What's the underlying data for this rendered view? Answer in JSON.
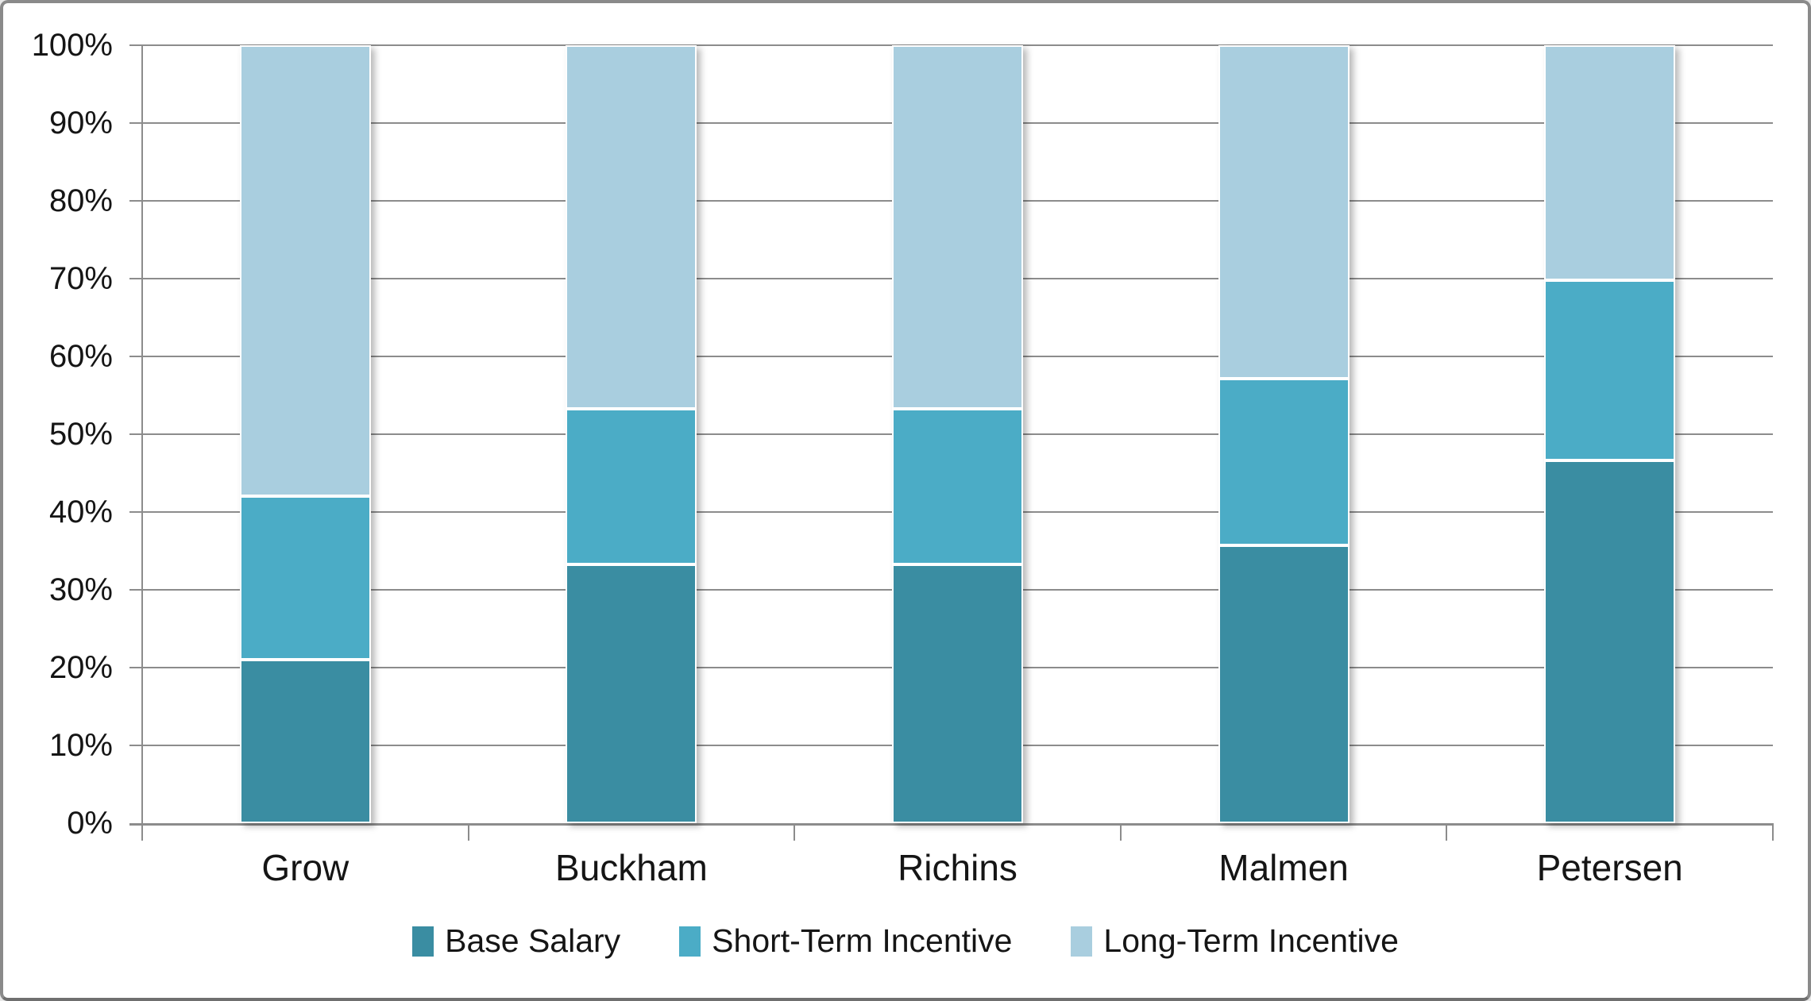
{
  "chart_data": {
    "type": "bar",
    "stacking": "percent_stacked",
    "orientation": "vertical",
    "title": "",
    "xlabel": "",
    "ylabel": "",
    "categories": [
      "Grow",
      "Buckham",
      "Richins",
      "Malmen",
      "Petersen"
    ],
    "series": [
      {
        "name": "Base Salary",
        "color": "#3A8DA2",
        "values": [
          21.0,
          33.3,
          33.3,
          35.7,
          46.6
        ]
      },
      {
        "name": "Short-Term Incentive",
        "color": "#4BACC6",
        "values": [
          21.0,
          20.0,
          20.0,
          21.4,
          23.2
        ]
      },
      {
        "name": "Long-Term Incentive",
        "color": "#A9CEDF",
        "values": [
          58.0,
          46.7,
          46.7,
          42.9,
          30.2
        ]
      }
    ],
    "y_axis": {
      "min": 0,
      "max": 100,
      "tick_step": 10,
      "tick_labels": [
        "0%",
        "10%",
        "20%",
        "30%",
        "40%",
        "50%",
        "60%",
        "70%",
        "80%",
        "90%",
        "100%"
      ]
    },
    "x_axis": {
      "tick_labels": [
        "Grow",
        "Buckham",
        "Richins",
        "Malmen",
        "Petersen"
      ]
    },
    "legend": {
      "position": "bottom",
      "entries": [
        "Base Salary",
        "Short-Term Incentive",
        "Long-Term Incentive"
      ]
    },
    "grid": true
  },
  "colors": {
    "background": "#FFFFFF",
    "frame_border": "#8A8A8A",
    "gridline": "#8C8C8C",
    "axis": "#8C8C8C",
    "text": "#151515",
    "separator": "#FFFFFF"
  }
}
